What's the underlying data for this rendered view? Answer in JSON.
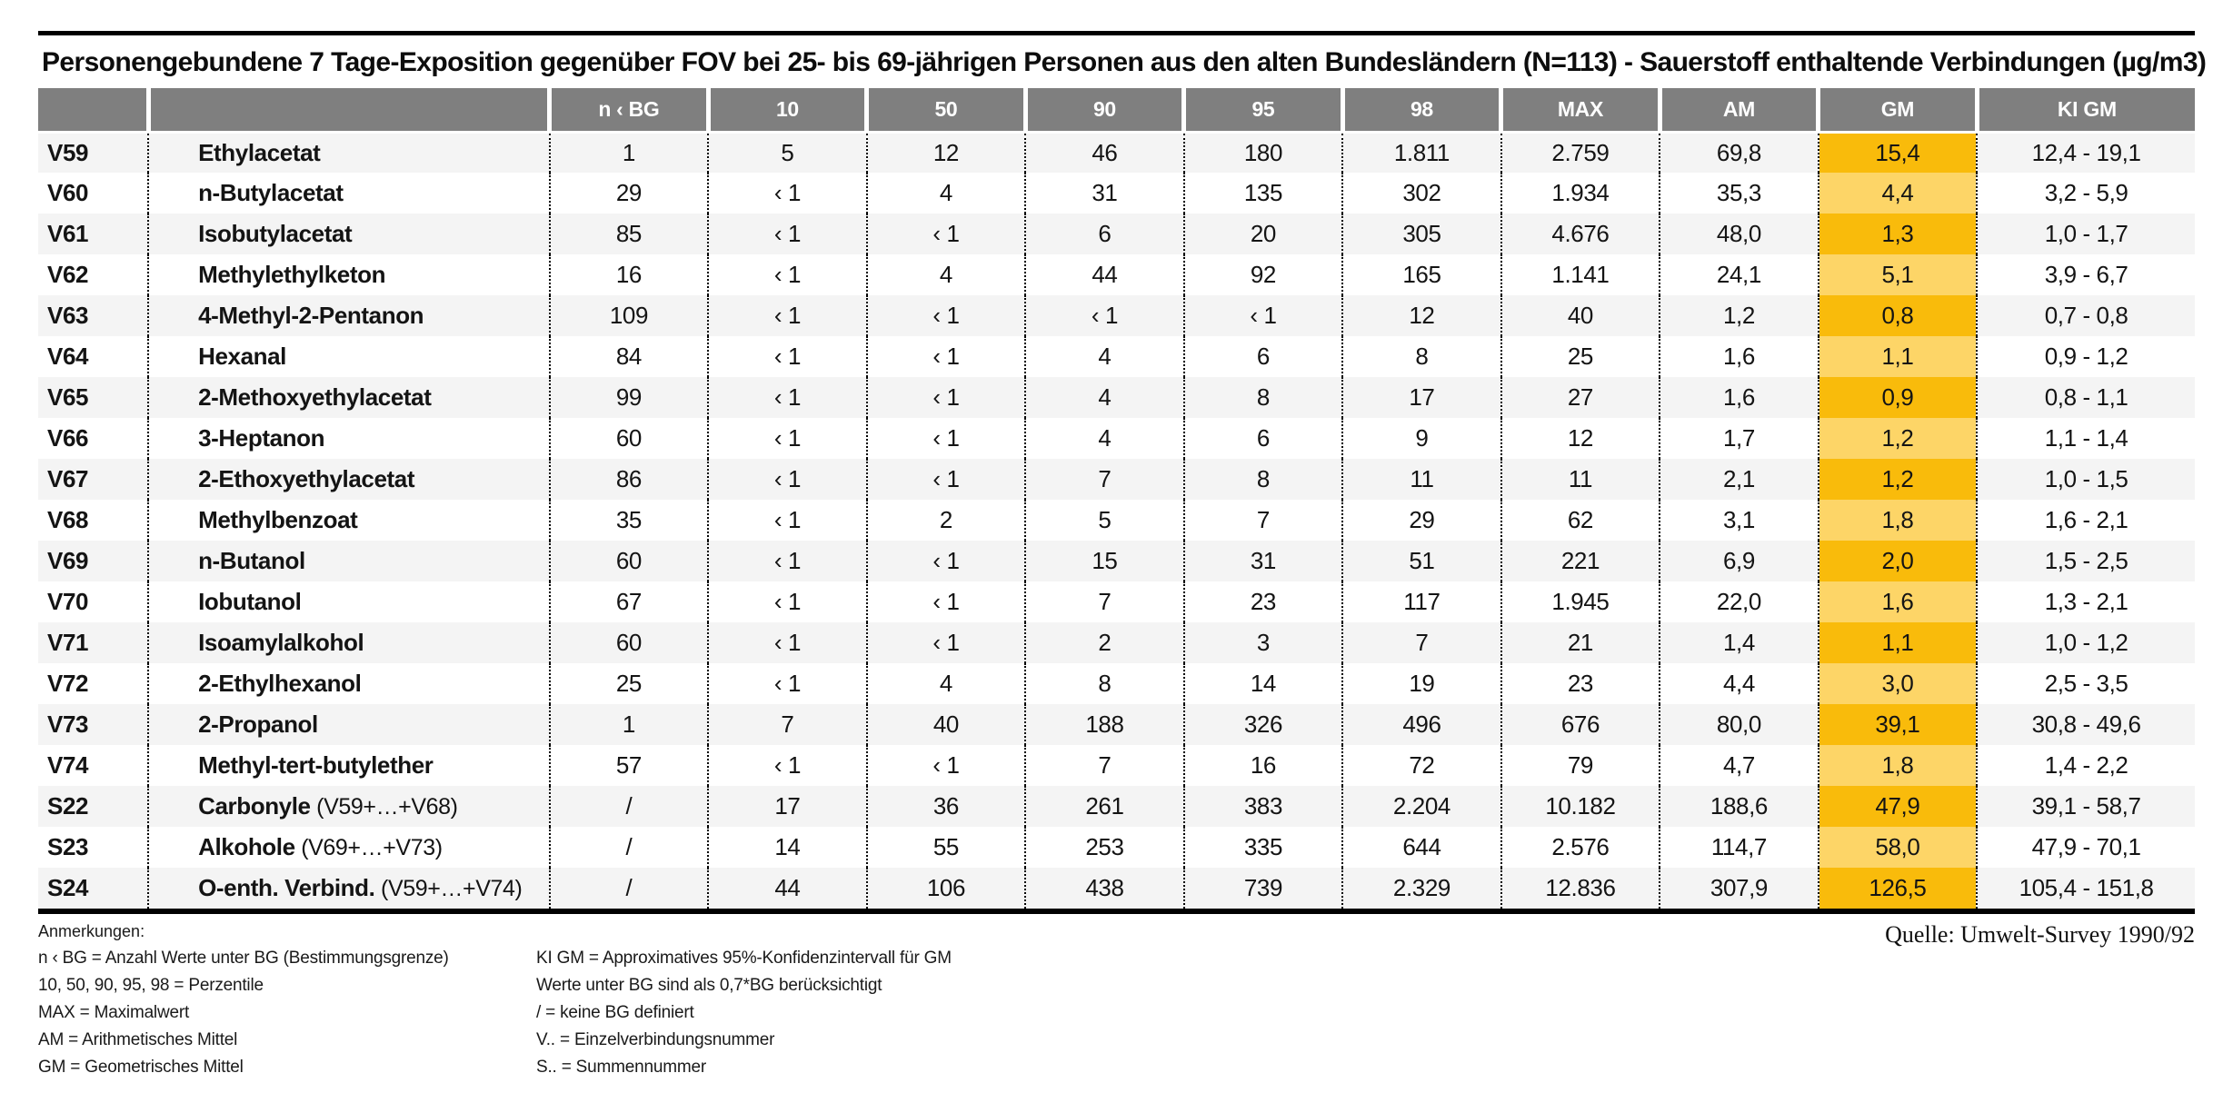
{
  "title": "Personengebundene 7 Tage-Exposition gegenüber FOV bei 25- bis 69-jährigen Personen aus den alten Bundesländern (N=113) - Sauerstoff enthaltende Verbindungen (µg/m3)",
  "source": "Quelle: Umwelt-Survey 1990/92",
  "colors": {
    "header_gray": "#7f7f7f",
    "zebra_gray": "#f4f4f4",
    "gm_dark_orange": "#f9bb0b",
    "gm_light_orange": "#fdd567",
    "rule_black": "#000000"
  },
  "table": {
    "columns": [
      "",
      "",
      "n ‹ BG",
      "10",
      "50",
      "90",
      "95",
      "98",
      "MAX",
      "AM",
      "GM",
      "KI GM"
    ],
    "rows": [
      {
        "id": "V59",
        "name": "Ethylacetat",
        "suffix": "",
        "values": [
          "1",
          "5",
          "12",
          "46",
          "180",
          "1.811",
          "2.759",
          "69,8",
          "15,4",
          "12,4 - 19,1"
        ]
      },
      {
        "id": "V60",
        "name": "n-Butylacetat",
        "suffix": "",
        "values": [
          "29",
          "‹ 1",
          "4",
          "31",
          "135",
          "302",
          "1.934",
          "35,3",
          "4,4",
          "3,2 - 5,9"
        ]
      },
      {
        "id": "V61",
        "name": "Isobutylacetat",
        "suffix": "",
        "values": [
          "85",
          "‹ 1",
          "‹ 1",
          "6",
          "20",
          "305",
          "4.676",
          "48,0",
          "1,3",
          "1,0 - 1,7"
        ]
      },
      {
        "id": "V62",
        "name": "Methylethylketon",
        "suffix": "",
        "values": [
          "16",
          "‹ 1",
          "4",
          "44",
          "92",
          "165",
          "1.141",
          "24,1",
          "5,1",
          "3,9 - 6,7"
        ]
      },
      {
        "id": "V63",
        "name": "4-Methyl-2-Pentanon",
        "suffix": "",
        "values": [
          "109",
          "‹ 1",
          "‹ 1",
          "‹ 1",
          "‹ 1",
          "12",
          "40",
          "1,2",
          "0,8",
          "0,7 - 0,8"
        ]
      },
      {
        "id": "V64",
        "name": "Hexanal",
        "suffix": "",
        "values": [
          "84",
          "‹ 1",
          "‹ 1",
          "4",
          "6",
          "8",
          "25",
          "1,6",
          "1,1",
          "0,9 - 1,2"
        ]
      },
      {
        "id": "V65",
        "name": "2-Methoxyethylacetat",
        "suffix": "",
        "values": [
          "99",
          "‹ 1",
          "‹ 1",
          "4",
          "8",
          "17",
          "27",
          "1,6",
          "0,9",
          "0,8 - 1,1"
        ]
      },
      {
        "id": "V66",
        "name": "3-Heptanon",
        "suffix": "",
        "values": [
          "60",
          "‹ 1",
          "‹ 1",
          "4",
          "6",
          "9",
          "12",
          "1,7",
          "1,2",
          "1,1 - 1,4"
        ]
      },
      {
        "id": "V67",
        "name": "2-Ethoxyethylacetat",
        "suffix": "",
        "values": [
          "86",
          "‹ 1",
          "‹ 1",
          "7",
          "8",
          "11",
          "11",
          "2,1",
          "1,2",
          "1,0 - 1,5"
        ]
      },
      {
        "id": "V68",
        "name": "Methylbenzoat",
        "suffix": "",
        "values": [
          "35",
          "‹ 1",
          "2",
          "5",
          "7",
          "29",
          "62",
          "3,1",
          "1,8",
          "1,6 - 2,1"
        ]
      },
      {
        "id": "V69",
        "name": "n-Butanol",
        "suffix": "",
        "values": [
          "60",
          "‹ 1",
          "‹ 1",
          "15",
          "31",
          "51",
          "221",
          "6,9",
          "2,0",
          "1,5 - 2,5"
        ]
      },
      {
        "id": "V70",
        "name": "Iobutanol",
        "suffix": "",
        "values": [
          "67",
          "‹ 1",
          "‹ 1",
          "7",
          "23",
          "117",
          "1.945",
          "22,0",
          "1,6",
          "1,3 - 2,1"
        ]
      },
      {
        "id": "V71",
        "name": "Isoamylalkohol",
        "suffix": "",
        "values": [
          "60",
          "‹ 1",
          "‹ 1",
          "2",
          "3",
          "7",
          "21",
          "1,4",
          "1,1",
          "1,0 - 1,2"
        ]
      },
      {
        "id": "V72",
        "name": "2-Ethylhexanol",
        "suffix": "",
        "values": [
          "25",
          "‹ 1",
          "4",
          "8",
          "14",
          "19",
          "23",
          "4,4",
          "3,0",
          "2,5 - 3,5"
        ]
      },
      {
        "id": "V73",
        "name": "2-Propanol",
        "suffix": "",
        "values": [
          "1",
          "7",
          "40",
          "188",
          "326",
          "496",
          "676",
          "80,0",
          "39,1",
          "30,8 - 49,6"
        ]
      },
      {
        "id": "V74",
        "name": "Methyl-tert-butylether",
        "suffix": "",
        "values": [
          "57",
          "‹ 1",
          "‹ 1",
          "7",
          "16",
          "72",
          "79",
          "4,7",
          "1,8",
          "1,4 - 2,2"
        ]
      },
      {
        "id": "S22",
        "name": "Carbonyle",
        "suffix": "(V59+…+V68)",
        "values": [
          "/",
          "17",
          "36",
          "261",
          "383",
          "2.204",
          "10.182",
          "188,6",
          "47,9",
          "39,1 - 58,7"
        ]
      },
      {
        "id": "S23",
        "name": "Alkohole",
        "suffix": "(V69+…+V73)",
        "values": [
          "/",
          "14",
          "55",
          "253",
          "335",
          "644",
          "2.576",
          "114,7",
          "58,0",
          "47,9 - 70,1"
        ]
      },
      {
        "id": "S24",
        "name": "O-enth. Verbind.",
        "suffix": "(V59+…+V74)",
        "values": [
          "/",
          "44",
          "106",
          "438",
          "739",
          "2.329",
          "12.836",
          "307,9",
          "126,5",
          "105,4 - 151,8"
        ]
      }
    ]
  },
  "notes": {
    "heading": "Anmerkungen:",
    "left": [
      "n ‹ BG = Anzahl Werte unter BG (Bestimmungsgrenze)",
      "10, 50, 90, 95, 98 = Perzentile",
      "MAX = Maximalwert",
      "AM = Arithmetisches Mittel",
      "GM = Geometrisches Mittel"
    ],
    "right": [
      "KI GM = Approximatives 95%-Konfidenzintervall für GM",
      "Werte unter BG sind als 0,7*BG berücksichtigt",
      "/  = keine BG definiert",
      "V.. = Einzelverbindungsnummer",
      "S.. = Summennummer"
    ]
  }
}
